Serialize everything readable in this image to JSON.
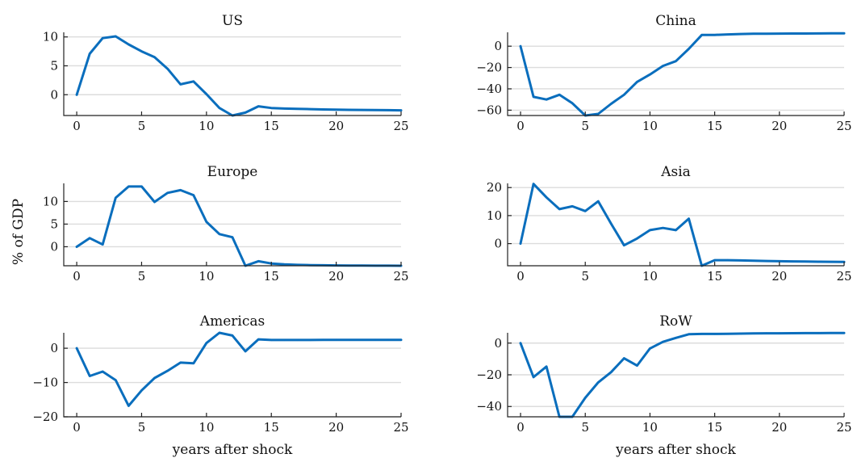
{
  "figure": {
    "ylabel": "% of GDP",
    "line_color": "#0a6ebd"
  },
  "chart_data": [
    {
      "type": "line",
      "title": "US",
      "xlabel": "",
      "xlim": [
        -1,
        25
      ],
      "ylim": [
        -3.6,
        10.8
      ],
      "xticks": [
        0,
        5,
        10,
        15,
        20,
        25
      ],
      "yticks": [
        0,
        5,
        10
      ],
      "grid": true,
      "x": [
        0,
        1,
        2,
        3,
        4,
        5,
        6,
        7,
        8,
        9,
        10,
        11,
        12,
        13,
        14,
        15,
        16,
        17,
        18,
        19,
        20,
        21,
        22,
        23,
        24,
        25
      ],
      "y": [
        0,
        7.1,
        9.8,
        10.1,
        8.7,
        7.5,
        6.5,
        4.5,
        1.8,
        2.3,
        0.1,
        -2.3,
        -3.6,
        -3.1,
        -2.0,
        -2.3,
        -2.4,
        -2.45,
        -2.5,
        -2.55,
        -2.6,
        -2.62,
        -2.64,
        -2.66,
        -2.68,
        -2.7
      ]
    },
    {
      "type": "line",
      "title": "China",
      "xlabel": "",
      "xlim": [
        -1,
        25
      ],
      "ylim": [
        -65,
        13
      ],
      "xticks": [
        0,
        5,
        10,
        15,
        20,
        25
      ],
      "yticks": [
        -60,
        -40,
        -20,
        0
      ],
      "grid": true,
      "x": [
        0,
        1,
        2,
        3,
        4,
        5,
        6,
        7,
        8,
        9,
        10,
        11,
        12,
        13,
        14,
        15,
        16,
        17,
        18,
        19,
        20,
        21,
        22,
        23,
        24,
        25
      ],
      "y": [
        0,
        -47.5,
        -50,
        -45.5,
        -53.5,
        -65,
        -63.5,
        -54,
        -45.5,
        -33.5,
        -26.5,
        -18.5,
        -14,
        -2.5,
        10.5,
        10.6,
        11,
        11.4,
        11.6,
        11.7,
        11.8,
        11.85,
        11.9,
        11.95,
        12,
        12
      ]
    },
    {
      "type": "line",
      "title": "Europe",
      "xlabel": "",
      "xlim": [
        -1,
        25
      ],
      "ylim": [
        -4.2,
        14
      ],
      "xticks": [
        0,
        5,
        10,
        15,
        20,
        25
      ],
      "yticks": [
        0,
        5,
        10
      ],
      "grid": true,
      "x": [
        0,
        1,
        2,
        3,
        4,
        5,
        6,
        7,
        8,
        9,
        10,
        11,
        12,
        13,
        14,
        15,
        16,
        17,
        18,
        19,
        20,
        21,
        22,
        23,
        24,
        25
      ],
      "y": [
        0,
        1.9,
        0.5,
        10.8,
        13.3,
        13.3,
        9.9,
        11.9,
        12.5,
        11.4,
        5.5,
        2.8,
        2.1,
        -4.2,
        -3.2,
        -3.7,
        -3.9,
        -4.0,
        -4.05,
        -4.1,
        -4.12,
        -4.14,
        -4.16,
        -4.18,
        -4.19,
        -4.2
      ]
    },
    {
      "type": "line",
      "title": "Asia",
      "xlabel": "",
      "xlim": [
        -1,
        25
      ],
      "ylim": [
        -7.9,
        21.5
      ],
      "xticks": [
        0,
        5,
        10,
        15,
        20,
        25
      ],
      "yticks": [
        0,
        10,
        20
      ],
      "grid": true,
      "x": [
        0,
        1,
        2,
        3,
        4,
        5,
        6,
        7,
        8,
        9,
        10,
        11,
        12,
        13,
        14,
        15,
        16,
        17,
        18,
        19,
        20,
        21,
        22,
        23,
        24,
        25
      ],
      "y": [
        0,
        21.3,
        16.5,
        12.3,
        13.3,
        11.6,
        15.1,
        7.1,
        -0.6,
        1.8,
        4.8,
        5.6,
        4.8,
        8.9,
        -7.9,
        -5.9,
        -5.9,
        -6.0,
        -6.1,
        -6.2,
        -6.3,
        -6.35,
        -6.4,
        -6.45,
        -6.5,
        -6.55
      ]
    },
    {
      "type": "line",
      "title": "Americas",
      "xlabel": "years after shock",
      "xlim": [
        -1,
        25
      ],
      "ylim": [
        -20,
        4.5
      ],
      "xticks": [
        0,
        5,
        10,
        15,
        20,
        25
      ],
      "yticks": [
        -20,
        -10,
        0
      ],
      "grid": true,
      "x": [
        0,
        1,
        2,
        3,
        4,
        5,
        6,
        7,
        8,
        9,
        10,
        11,
        12,
        13,
        14,
        15,
        16,
        17,
        18,
        19,
        20,
        21,
        22,
        23,
        24,
        25
      ],
      "y": [
        0,
        -8.1,
        -6.8,
        -9.3,
        -16.8,
        -12.3,
        -8.7,
        -6.6,
        -4.2,
        -4.4,
        1.5,
        4.5,
        3.7,
        -0.9,
        2.6,
        2.4,
        2.4,
        2.4,
        2.4,
        2.45,
        2.45,
        2.45,
        2.45,
        2.45,
        2.45,
        2.45
      ]
    },
    {
      "type": "line",
      "title": "RoW",
      "xlabel": "years after shock",
      "xlim": [
        -1,
        25
      ],
      "ylim": [
        -46.5,
        6.5
      ],
      "xticks": [
        0,
        5,
        10,
        15,
        20,
        25
      ],
      "yticks": [
        -40,
        -20,
        0
      ],
      "grid": true,
      "x": [
        0,
        1,
        2,
        3,
        4,
        5,
        6,
        7,
        8,
        9,
        10,
        11,
        12,
        13,
        14,
        15,
        16,
        17,
        18,
        19,
        20,
        21,
        22,
        23,
        24,
        25
      ],
      "y": [
        0,
        -21.5,
        -14.8,
        -46.5,
        -46.5,
        -34.5,
        -24.8,
        -18.3,
        -9.6,
        -14.2,
        -3.4,
        0.8,
        3.3,
        5.6,
        5.8,
        5.8,
        5.9,
        6.0,
        6.1,
        6.2,
        6.2,
        6.25,
        6.3,
        6.3,
        6.35,
        6.4
      ]
    }
  ]
}
